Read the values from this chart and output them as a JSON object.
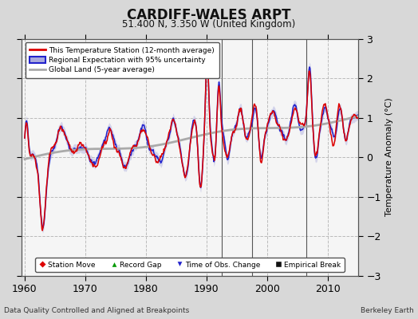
{
  "title": "CARDIFF-WALES ARPT",
  "subtitle": "51.400 N, 3.350 W (United Kingdom)",
  "ylabel": "Temperature Anomaly (°C)",
  "xlabel_left": "Data Quality Controlled and Aligned at Breakpoints",
  "xlabel_right": "Berkeley Earth",
  "ylim": [
    -3,
    3
  ],
  "xlim": [
    1959.5,
    2015.0
  ],
  "xticks": [
    1960,
    1970,
    1980,
    1990,
    2000,
    2010
  ],
  "yticks": [
    -3,
    -2,
    -1,
    0,
    1,
    2,
    3
  ],
  "bg_color": "#d8d8d8",
  "plot_bg_color": "#f5f5f5",
  "grid_color": "#bbbbbb",
  "empirical_breaks": [
    1992.5,
    1997.5,
    2006.5
  ],
  "vertical_lines": [
    1992.5,
    1997.5,
    2006.5
  ],
  "red_line_color": "#dd0000",
  "blue_line_color": "#2222cc",
  "blue_band_color": "#aaaadd",
  "gray_line_color": "#aaaaaa",
  "band_alpha": 0.45,
  "band_halfwidth": 0.12
}
